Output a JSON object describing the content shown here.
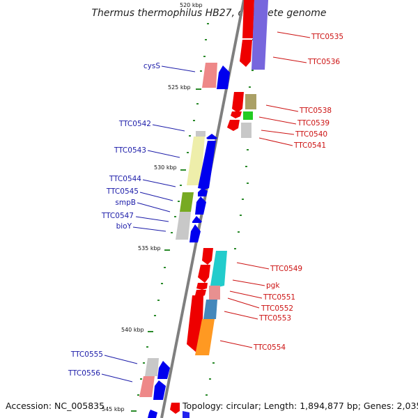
{
  "title": "Thermus thermophilus HB27, complete genome",
  "footer": {
    "accession": "Accession: NC_005835",
    "summary": "Topology: circular; Length: 1,894,877 bp; Genes: 2,035"
  },
  "scale_labels": [
    {
      "id": "t520",
      "text": "520 kbp"
    },
    {
      "id": "t525",
      "text": "525 kbp"
    },
    {
      "id": "t530",
      "text": "530 kbp"
    },
    {
      "id": "t535",
      "text": "535 kbp"
    },
    {
      "id": "t540",
      "text": "540 kbp"
    },
    {
      "id": "t545",
      "text": "545 kbp"
    }
  ],
  "colors": {
    "axis": "#7f7f7f",
    "tick": "#2a8a2a",
    "left_label": "#1a1aa8",
    "right_label": "#cc1111",
    "forward_gene": "#ff0000",
    "reverse_gene": "#0000ff"
  },
  "left_genes": [
    {
      "id": "cysS",
      "label": "cysS"
    },
    {
      "id": "ttc0542",
      "label": "TTC0542"
    },
    {
      "id": "ttc0543",
      "label": "TTC0543"
    },
    {
      "id": "ttc0544",
      "label": "TTC0544"
    },
    {
      "id": "ttc0545",
      "label": "TTC0545"
    },
    {
      "id": "smpB",
      "label": "smpB"
    },
    {
      "id": "ttc0547",
      "label": "TTC0547"
    },
    {
      "id": "bioY",
      "label": "bioY"
    },
    {
      "id": "ttc0555",
      "label": "TTC0555"
    },
    {
      "id": "ttc0556",
      "label": "TTC0556"
    }
  ],
  "right_genes": [
    {
      "id": "ttc0535",
      "label": "TTC0535"
    },
    {
      "id": "ttc0536",
      "label": "TTC0536"
    },
    {
      "id": "ttc0538",
      "label": "TTC0538"
    },
    {
      "id": "ttc0539",
      "label": "TTC0539"
    },
    {
      "id": "ttc0540",
      "label": "TTC0540"
    },
    {
      "id": "ttc0541",
      "label": "TTC0541"
    },
    {
      "id": "ttc0549",
      "label": "TTC0549"
    },
    {
      "id": "pgk",
      "label": "pgk"
    },
    {
      "id": "ttc0551",
      "label": "TTC0551"
    },
    {
      "id": "ttc0552",
      "label": "TTC0552"
    },
    {
      "id": "ttc0553",
      "label": "TTC0553"
    },
    {
      "id": "ttc0554",
      "label": "TTC0554"
    }
  ]
}
